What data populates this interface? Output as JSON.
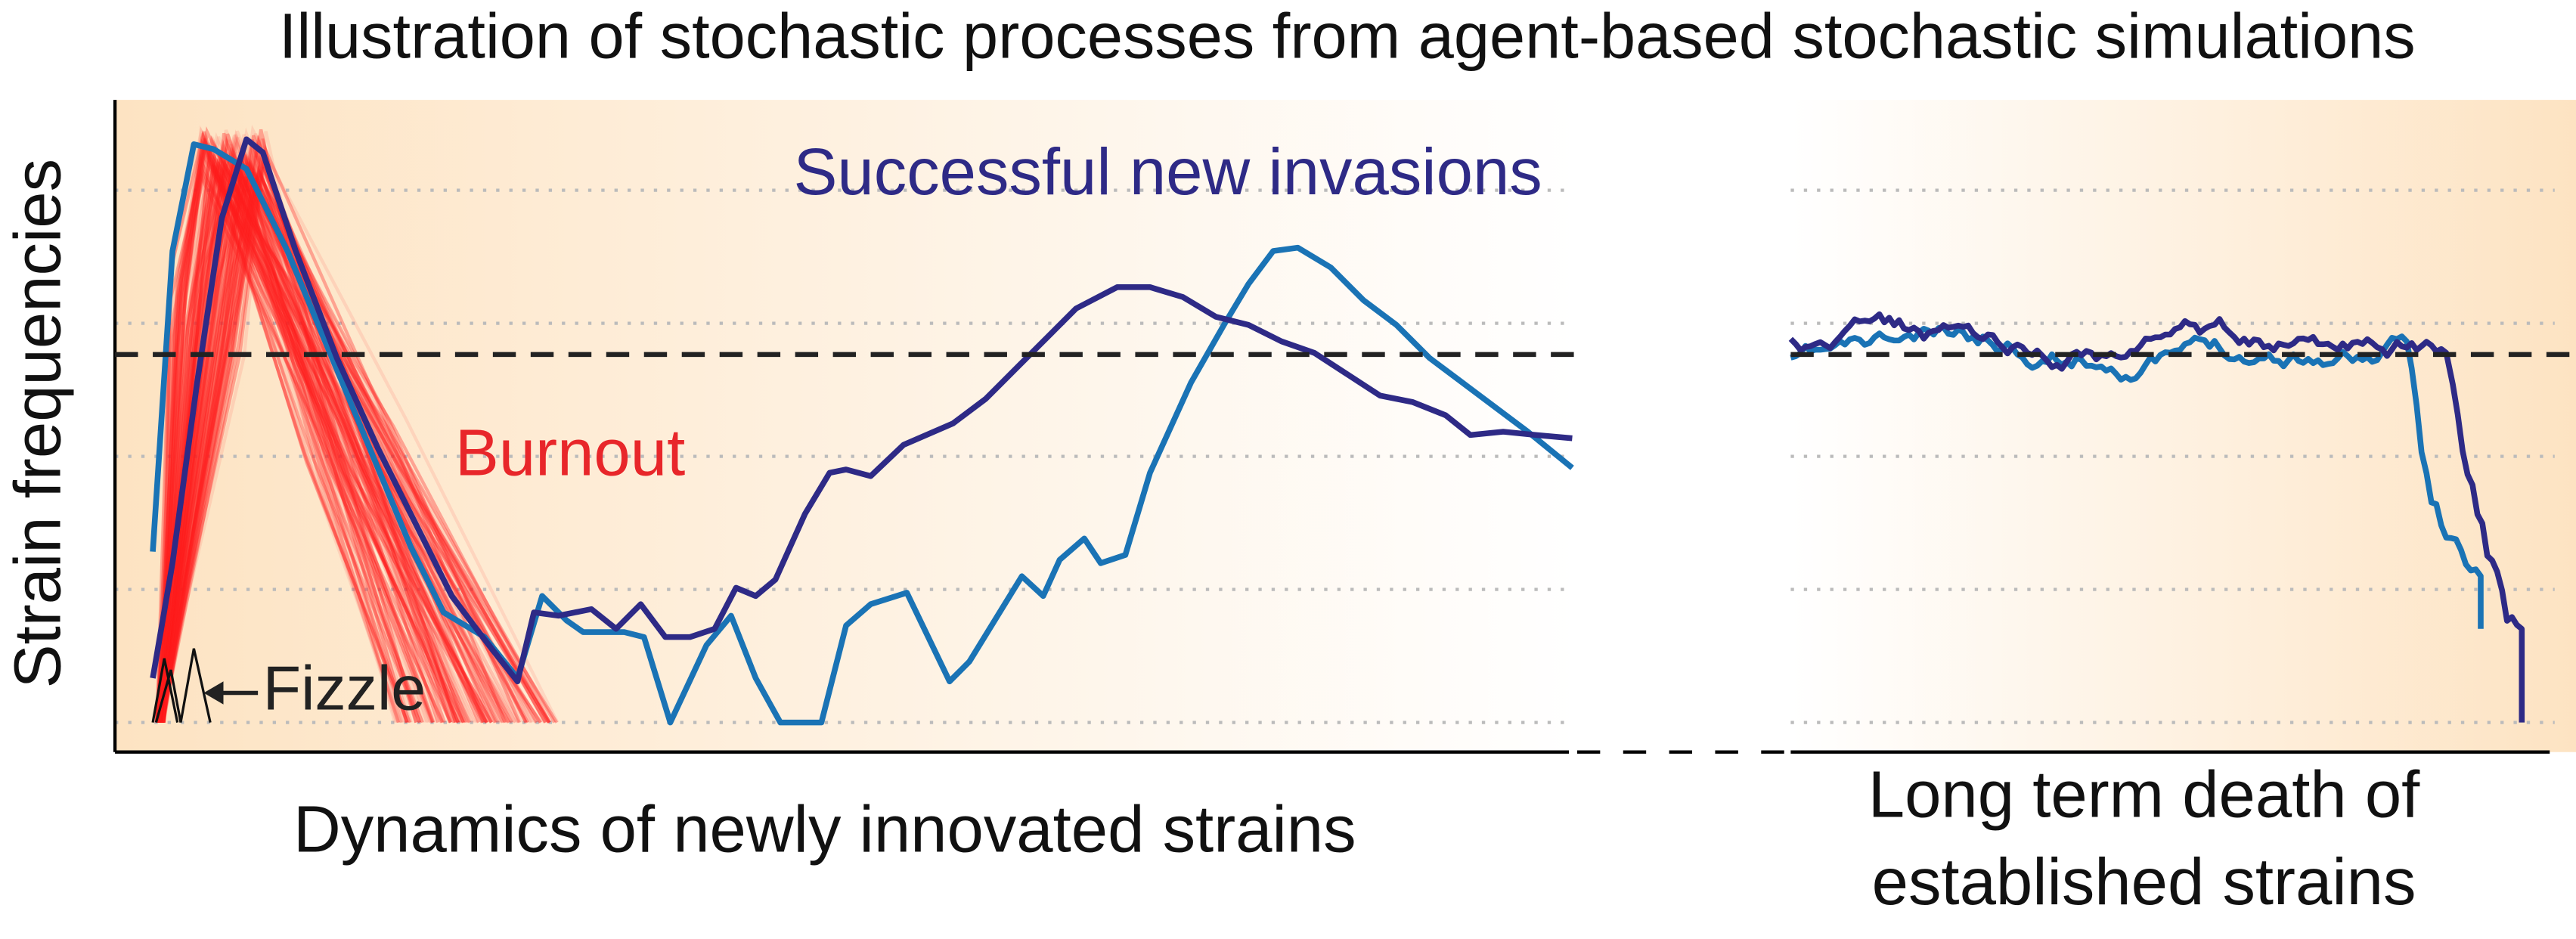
{
  "title": "Illustration of stochastic processes from agent-based stochastic simulations",
  "y_axis_label": "Strain frequencies",
  "annotations": {
    "successful": "Successful new invasions",
    "burnout": "Burnout",
    "fizzle": "Fizzle"
  },
  "panels": [
    {
      "label": "Dynamics of newly innovated strains"
    },
    {
      "label_lines": [
        "Long term death of",
        "established strains"
      ]
    }
  ]
}
